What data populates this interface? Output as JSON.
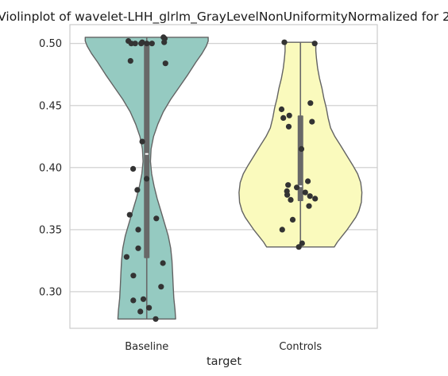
{
  "chart_data": {
    "type": "violin",
    "title": "Violinplot of wavelet-LHH_glrlm_GrayLevelNonUniformityNormalized for 2",
    "xlabel": "target",
    "ylabel": "",
    "categories": [
      "Baseline",
      "Controls"
    ],
    "ylim": [
      0.2705,
      0.5152
    ],
    "yticks": [
      0.3,
      0.35,
      0.4,
      0.45,
      0.5
    ],
    "ytick_labels": [
      "0.30",
      "0.35",
      "0.40",
      "0.45",
      "0.50"
    ],
    "grid": "horizontal",
    "colors": {
      "Baseline": "#95cac1",
      "Controls": "#fafabd",
      "outline": "#636363",
      "box": "#686868",
      "points": "#333333",
      "grid": "#cccccc",
      "axes": "#cccccc"
    },
    "series": [
      {
        "category": "Baseline",
        "stats": {
          "min": 0.278,
          "q1": 0.327,
          "median": 0.411,
          "q3": 0.5,
          "max": 0.505
        },
        "density_profile": [
          [
            0.278,
            0.47
          ],
          [
            0.285,
            0.46
          ],
          [
            0.295,
            0.44
          ],
          [
            0.305,
            0.43
          ],
          [
            0.315,
            0.42
          ],
          [
            0.325,
            0.41
          ],
          [
            0.335,
            0.39
          ],
          [
            0.345,
            0.35
          ],
          [
            0.355,
            0.29
          ],
          [
            0.365,
            0.23
          ],
          [
            0.375,
            0.17
          ],
          [
            0.385,
            0.12
          ],
          [
            0.395,
            0.08
          ],
          [
            0.405,
            0.06
          ],
          [
            0.415,
            0.07
          ],
          [
            0.425,
            0.11
          ],
          [
            0.435,
            0.18
          ],
          [
            0.445,
            0.27
          ],
          [
            0.455,
            0.39
          ],
          [
            0.465,
            0.53
          ],
          [
            0.475,
            0.67
          ],
          [
            0.485,
            0.8
          ],
          [
            0.492,
            0.9
          ],
          [
            0.498,
            0.97
          ],
          [
            0.502,
            1.0
          ],
          [
            0.505,
            1.0
          ]
        ],
        "points": [
          0.505,
          0.504,
          0.502,
          0.501,
          0.501,
          0.5,
          0.5,
          0.5,
          0.5,
          0.5,
          0.486,
          0.484,
          0.421,
          0.399,
          0.391,
          0.382,
          0.362,
          0.359,
          0.35,
          0.335,
          0.328,
          0.323,
          0.313,
          0.304,
          0.294,
          0.293,
          0.287,
          0.284,
          0.278
        ]
      },
      {
        "category": "Controls",
        "stats": {
          "min": 0.336,
          "q1": 0.373,
          "median": 0.385,
          "q3": 0.442,
          "max": 0.501
        },
        "density_profile": [
          [
            0.336,
            0.55
          ],
          [
            0.34,
            0.6
          ],
          [
            0.345,
            0.68
          ],
          [
            0.35,
            0.76
          ],
          [
            0.355,
            0.83
          ],
          [
            0.36,
            0.9
          ],
          [
            0.365,
            0.95
          ],
          [
            0.372,
            0.99
          ],
          [
            0.38,
            1.0
          ],
          [
            0.388,
            0.98
          ],
          [
            0.395,
            0.93
          ],
          [
            0.402,
            0.85
          ],
          [
            0.41,
            0.75
          ],
          [
            0.418,
            0.65
          ],
          [
            0.425,
            0.56
          ],
          [
            0.432,
            0.49
          ],
          [
            0.44,
            0.45
          ],
          [
            0.448,
            0.42
          ],
          [
            0.456,
            0.38
          ],
          [
            0.464,
            0.35
          ],
          [
            0.472,
            0.31
          ],
          [
            0.48,
            0.28
          ],
          [
            0.488,
            0.26
          ],
          [
            0.494,
            0.25
          ],
          [
            0.499,
            0.25
          ],
          [
            0.501,
            0.25
          ]
        ],
        "points": [
          0.501,
          0.5,
          0.452,
          0.447,
          0.442,
          0.44,
          0.437,
          0.433,
          0.415,
          0.389,
          0.386,
          0.384,
          0.381,
          0.38,
          0.378,
          0.377,
          0.375,
          0.374,
          0.369,
          0.358,
          0.35,
          0.339,
          0.336
        ]
      }
    ]
  }
}
